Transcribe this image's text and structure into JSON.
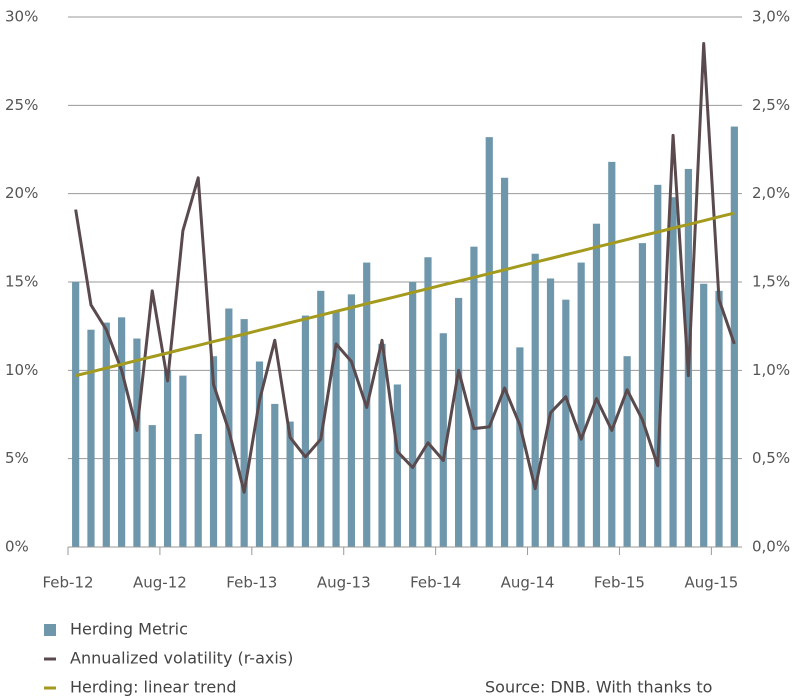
{
  "chart_data": {
    "type": "bar",
    "categories": [
      "Feb-12",
      null,
      null,
      null,
      null,
      null,
      "Aug-12",
      null,
      null,
      null,
      null,
      null,
      "Feb-13",
      null,
      null,
      null,
      null,
      null,
      "Aug-13",
      null,
      null,
      null,
      null,
      null,
      "Feb-14",
      null,
      null,
      null,
      null,
      null,
      "Aug-14",
      null,
      null,
      null,
      null,
      null,
      "Feb-15",
      null,
      null,
      null,
      null,
      null,
      "Aug-15",
      null
    ],
    "series": [
      {
        "name": "Herding Metric",
        "type": "bar",
        "color": "#6f97ab",
        "values": [
          15.0,
          12.3,
          12.7,
          13.0,
          11.8,
          6.9,
          10.0,
          9.7,
          6.4,
          10.8,
          13.5,
          12.9,
          10.5,
          8.1,
          7.1,
          13.1,
          14.5,
          13.3,
          14.3,
          16.1,
          11.5,
          9.2,
          15.0,
          16.4,
          12.1,
          14.1,
          17.0,
          23.2,
          20.9,
          11.3,
          16.6,
          15.2,
          14.0,
          16.1,
          18.3,
          21.8,
          10.8,
          17.2,
          20.5,
          19.8,
          21.4,
          14.9,
          14.5,
          23.8
        ]
      },
      {
        "name": "Annualized volatility (r-axis)",
        "type": "line",
        "axis": "y2",
        "color": "#5a4a4e",
        "values": [
          1.91,
          1.37,
          1.23,
          1.0,
          0.66,
          1.45,
          0.94,
          1.79,
          2.09,
          0.92,
          0.66,
          0.31,
          0.83,
          1.17,
          0.62,
          0.51,
          0.61,
          1.15,
          1.05,
          0.79,
          1.17,
          0.54,
          0.45,
          0.59,
          0.49,
          1.0,
          0.67,
          0.68,
          0.9,
          0.69,
          0.33,
          0.76,
          0.85,
          0.61,
          0.84,
          0.66,
          0.89,
          0.72,
          0.46,
          2.33,
          0.97,
          2.85,
          1.4,
          1.15
        ]
      },
      {
        "name": "Herding: linear trend",
        "type": "line",
        "color": "#a39a1e",
        "values": [
          9.7,
          9.91,
          10.13,
          10.34,
          10.56,
          10.77,
          10.98,
          11.2,
          11.41,
          11.63,
          11.84,
          12.05,
          12.27,
          12.48,
          12.7,
          12.91,
          13.12,
          13.34,
          13.55,
          13.77,
          13.98,
          14.19,
          14.41,
          14.62,
          14.84,
          15.05,
          15.26,
          15.48,
          15.69,
          15.91,
          16.12,
          16.33,
          16.55,
          16.76,
          16.98,
          17.19,
          17.4,
          17.62,
          17.83,
          18.05,
          18.26,
          18.47,
          18.69,
          18.9
        ]
      }
    ],
    "ylim": [
      0,
      30
    ],
    "yticks": [
      {
        "value": 0,
        "label": "0%"
      },
      {
        "value": 5,
        "label": "5%"
      },
      {
        "value": 10,
        "label": "10%"
      },
      {
        "value": 15,
        "label": "15%"
      },
      {
        "value": 20,
        "label": "20%"
      },
      {
        "value": 25,
        "label": "25%"
      },
      {
        "value": 30,
        "label": "30%"
      }
    ],
    "y2lim": [
      0,
      3
    ],
    "y2ticks": [
      {
        "value": 0,
        "label": "0,0%"
      },
      {
        "value": 0.5,
        "label": "0,5%"
      },
      {
        "value": 1,
        "label": "1,0%"
      },
      {
        "value": 1.5,
        "label": "1,5%"
      },
      {
        "value": 2,
        "label": "2,0%"
      },
      {
        "value": 2.5,
        "label": "2,5%"
      },
      {
        "value": 3,
        "label": "3,0%"
      }
    ],
    "grid": true,
    "legend": "bottom-left",
    "source": "Source: DNB. With thanks to"
  }
}
